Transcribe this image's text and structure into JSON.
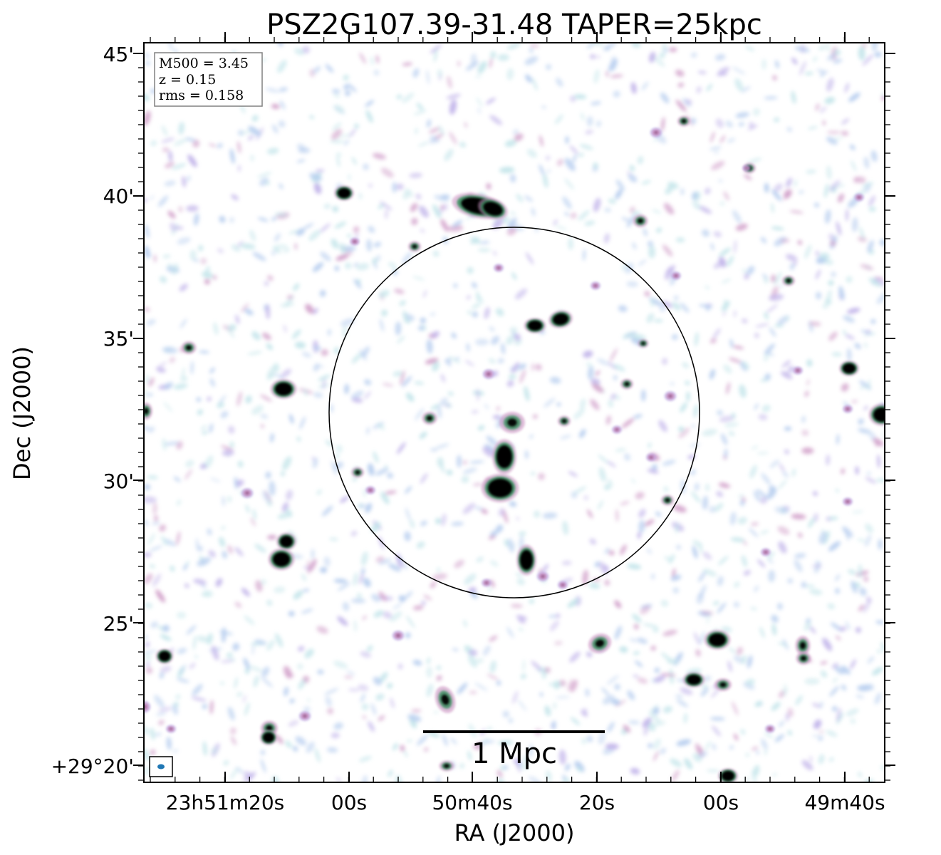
{
  "title": "PSZ2G107.39-31.48 TAPER=25kpc",
  "xlabel": "RA (J2000)",
  "ylabel": "Dec (J2000)",
  "x_ticks": [
    "23h51m20s",
    "00s",
    "50m40s",
    "20s",
    "00s",
    "49m40s"
  ],
  "y_ticks": [
    "45'",
    "40'",
    "35'",
    "30'",
    "25'",
    "+29°20'"
  ],
  "info": {
    "m500": "M500 = 3.45",
    "z": "z = 0.15",
    "rms": "rms = 0.158"
  },
  "scalebar_label": "1 Mpc",
  "colors": {
    "noise_blue": "#a9c4ec",
    "noise_cyan": "#b8e0e6",
    "noise_purple": "#b6a6e6",
    "noise_pink": "#c98fc0",
    "source_core": "#000000",
    "source_ring": "#2e8b57",
    "beam": "#1f77b4"
  },
  "icons": {
    "beam": "beam-ellipse-icon",
    "r500_circle": "r500-circle-icon"
  }
}
